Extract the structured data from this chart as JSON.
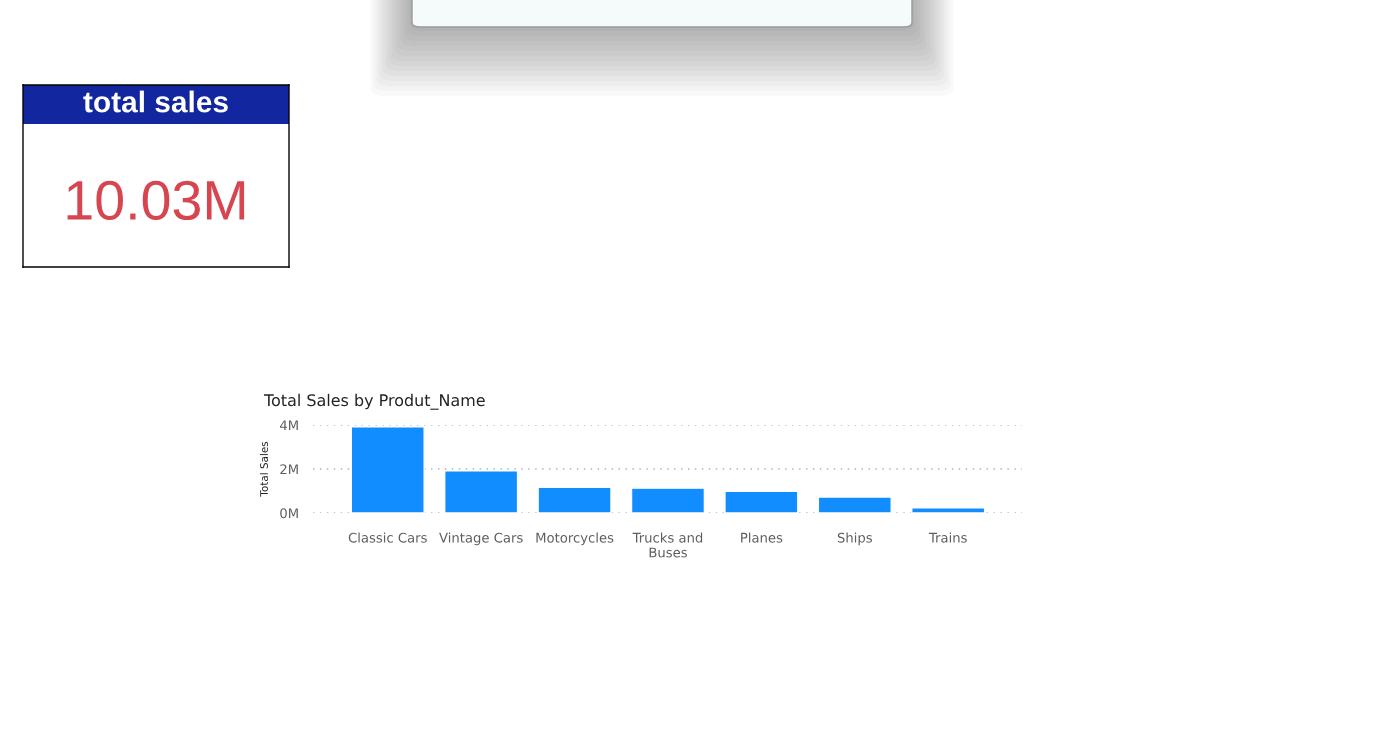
{
  "chart_data": [
    {
      "type": "other",
      "title": "total sales",
      "annotations": [
        "10.03M"
      ]
    },
    {
      "type": "bar",
      "title": "Total Sales by Produt_Name",
      "ylabel": "Total Sales",
      "categories": [
        "Classic Cars",
        "Vintage Cars",
        "Motorcycles",
        "Trucks and Buses",
        "Planes",
        "Ships",
        "Trains"
      ],
      "values": [
        3.92,
        1.92,
        1.17,
        1.13,
        0.99,
        0.73,
        0.24
      ],
      "color": "#118dff",
      "ylim": [
        0,
        4
      ],
      "yticks": [
        {
          "value": 0,
          "label": "0M"
        },
        {
          "value": 2,
          "label": "2M"
        },
        {
          "value": 4,
          "label": "4M"
        }
      ],
      "grid": "y"
    }
  ]
}
